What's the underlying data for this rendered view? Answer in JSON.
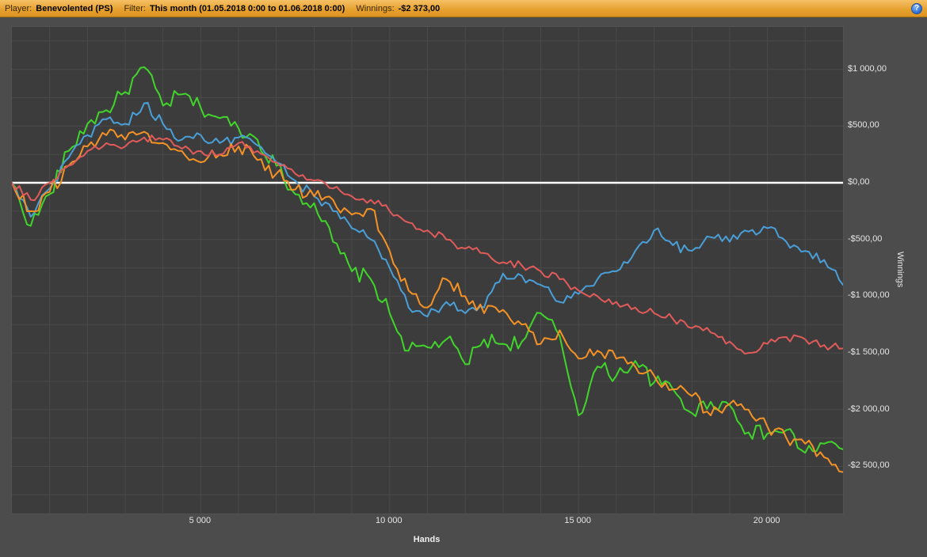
{
  "header": {
    "player_label": "Player:",
    "player_value": "Benevolented (PS)",
    "filter_label": "Filter:",
    "filter_value": "This month (01.05.2018 0:00 to 01.06.2018 0:00)",
    "winnings_label": "Winnings:",
    "winnings_value": "-$2 373,00",
    "help_icon": "?"
  },
  "colors": {
    "titlebar_top": "#f6c066",
    "titlebar_bottom": "#dd9323",
    "window_bg": "#4c4c4c",
    "plot_bg": "#3c3c3c",
    "grid": "#4a4a4a",
    "zero_line": "#ffffff",
    "tick_text": "#e6e6e6",
    "help": "#2f6fd6"
  },
  "chart_data": {
    "type": "line",
    "title": "",
    "xlabel": "Hands",
    "ylabel": "Winnings",
    "xlim": [
      0,
      22000
    ],
    "ylim": [
      -2915,
      1374
    ],
    "grid": true,
    "legend": "none",
    "x_ticks": [
      {
        "value": 5000,
        "label": "5 000"
      },
      {
        "value": 10000,
        "label": "10 000"
      },
      {
        "value": 15000,
        "label": "15 000"
      },
      {
        "value": 20000,
        "label": "20 000"
      }
    ],
    "y_ticks": [
      {
        "value": 1000,
        "label": "$1 000,00"
      },
      {
        "value": 500,
        "label": "$500,00"
      },
      {
        "value": 0,
        "label": "$0,00"
      },
      {
        "value": -500,
        "label": "-$500,00"
      },
      {
        "value": -1000,
        "label": "-$1 000,00"
      },
      {
        "value": -1500,
        "label": "-$1 500,00"
      },
      {
        "value": -2000,
        "label": "-$2 000,00"
      },
      {
        "value": -2500,
        "label": "-$2 500,00"
      }
    ],
    "x": [
      0,
      500,
      1000,
      1500,
      2000,
      2500,
      3000,
      3500,
      4000,
      4500,
      5000,
      5500,
      6000,
      6500,
      7000,
      7500,
      8000,
      8500,
      9000,
      9500,
      10000,
      10500,
      11000,
      11500,
      12000,
      12500,
      13000,
      13500,
      14000,
      14500,
      15000,
      15500,
      16000,
      16500,
      17000,
      17500,
      18000,
      18500,
      19000,
      19500,
      20000,
      20500,
      21000,
      21500,
      22000
    ],
    "series": [
      {
        "name": "green",
        "color": "#41d52c",
        "values": [
          0,
          -380,
          -100,
          280,
          520,
          640,
          800,
          1020,
          680,
          780,
          660,
          570,
          480,
          380,
          150,
          -100,
          -180,
          -520,
          -780,
          -850,
          -1150,
          -1480,
          -1450,
          -1380,
          -1600,
          -1380,
          -1420,
          -1400,
          -1150,
          -1350,
          -2050,
          -1620,
          -1700,
          -1570,
          -1760,
          -1820,
          -2030,
          -1930,
          -1960,
          -2200,
          -2210,
          -2180,
          -2380,
          -2300,
          -2350
        ]
      },
      {
        "name": "blue",
        "color": "#4a9fd8",
        "values": [
          0,
          -300,
          -50,
          220,
          420,
          560,
          520,
          700,
          520,
          380,
          420,
          350,
          400,
          330,
          180,
          20,
          -120,
          -250,
          -400,
          -500,
          -750,
          -1100,
          -1180,
          -1050,
          -1150,
          -1100,
          -800,
          -820,
          -900,
          -1050,
          -980,
          -850,
          -780,
          -600,
          -420,
          -550,
          -600,
          -480,
          -520,
          -430,
          -400,
          -520,
          -600,
          -680,
          -900
        ]
      },
      {
        "name": "orange",
        "color": "#f59225",
        "values": [
          0,
          -250,
          -80,
          150,
          320,
          420,
          380,
          450,
          350,
          280,
          180,
          250,
          320,
          200,
          80,
          -60,
          -120,
          -150,
          -280,
          -230,
          -600,
          -950,
          -1100,
          -850,
          -1000,
          -1150,
          -1120,
          -1250,
          -1420,
          -1300,
          -1550,
          -1480,
          -1550,
          -1620,
          -1700,
          -1820,
          -1880,
          -2050,
          -1950,
          -2000,
          -2150,
          -2250,
          -2300,
          -2420,
          -2550
        ]
      },
      {
        "name": "red",
        "color": "#e15b5b",
        "values": [
          0,
          -150,
          0,
          150,
          280,
          350,
          320,
          400,
          380,
          300,
          280,
          250,
          350,
          280,
          180,
          80,
          20,
          -50,
          -120,
          -150,
          -250,
          -350,
          -420,
          -500,
          -580,
          -620,
          -700,
          -730,
          -780,
          -850,
          -950,
          -1000,
          -1050,
          -1100,
          -1150,
          -1200,
          -1280,
          -1320,
          -1400,
          -1500,
          -1420,
          -1360,
          -1380,
          -1430,
          -1460
        ]
      }
    ]
  }
}
